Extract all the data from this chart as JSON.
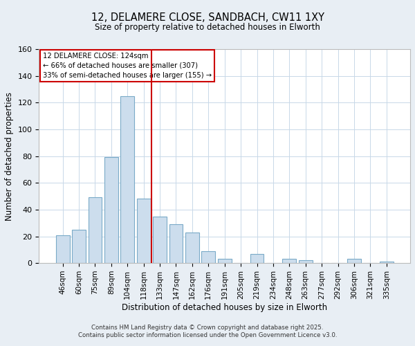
{
  "title": "12, DELAMERE CLOSE, SANDBACH, CW11 1XY",
  "subtitle": "Size of property relative to detached houses in Elworth",
  "xlabel": "Distribution of detached houses by size in Elworth",
  "ylabel": "Number of detached properties",
  "bar_labels": [
    "46sqm",
    "60sqm",
    "75sqm",
    "89sqm",
    "104sqm",
    "118sqm",
    "133sqm",
    "147sqm",
    "162sqm",
    "176sqm",
    "191sqm",
    "205sqm",
    "219sqm",
    "234sqm",
    "248sqm",
    "263sqm",
    "277sqm",
    "292sqm",
    "306sqm",
    "321sqm",
    "335sqm"
  ],
  "bar_values": [
    21,
    25,
    49,
    79,
    125,
    48,
    35,
    29,
    23,
    9,
    3,
    0,
    7,
    0,
    3,
    2,
    0,
    0,
    3,
    0,
    1
  ],
  "bar_color": "#ccdded",
  "bar_edge_color": "#7aaac8",
  "vline_x": 5.5,
  "vline_color": "#cc0000",
  "ylim": [
    0,
    160
  ],
  "yticks": [
    0,
    20,
    40,
    60,
    80,
    100,
    120,
    140,
    160
  ],
  "annotation_title": "12 DELAMERE CLOSE: 124sqm",
  "annotation_line1": "← 66% of detached houses are smaller (307)",
  "annotation_line2": "33% of semi-detached houses are larger (155) →",
  "annotation_box_color": "#ffffff",
  "annotation_border_color": "#cc0000",
  "footer1": "Contains HM Land Registry data © Crown copyright and database right 2025.",
  "footer2": "Contains public sector information licensed under the Open Government Licence v3.0.",
  "background_color": "#e8eef4",
  "plot_background_color": "#ffffff",
  "grid_color": "#c8d8e8"
}
